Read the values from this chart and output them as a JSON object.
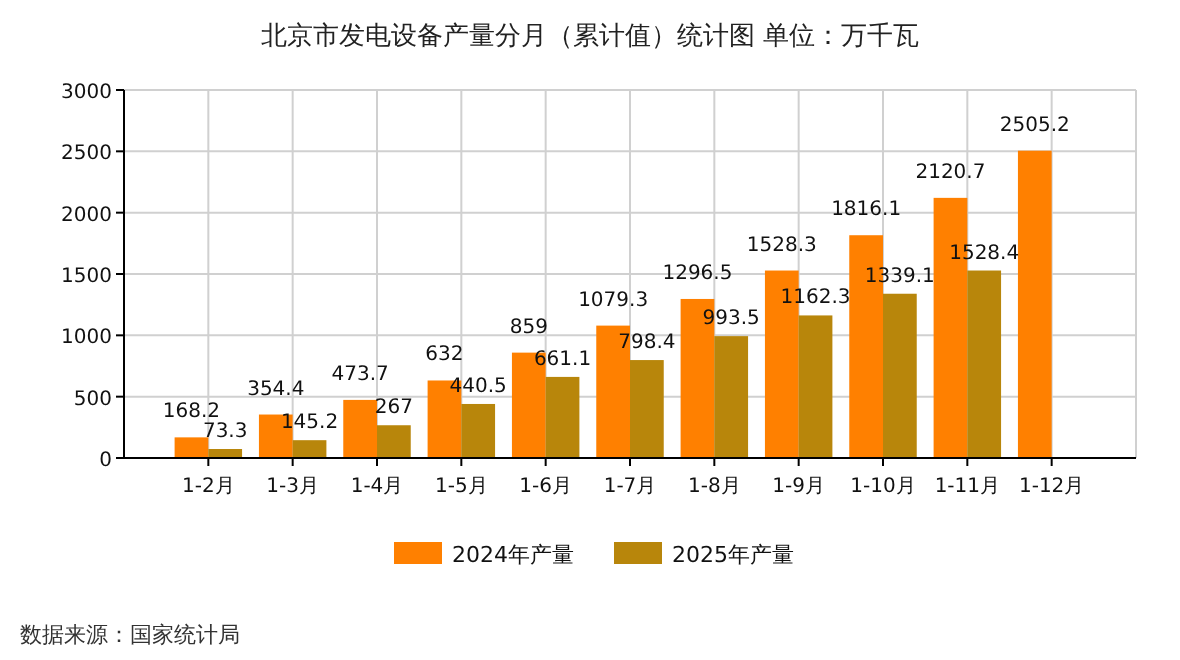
{
  "chart_data": {
    "type": "bar",
    "title": "北京市发电设备产量分月（累计值）统计图 单位：万千瓦",
    "categories": [
      "1-2月",
      "1-3月",
      "1-4月",
      "1-5月",
      "1-6月",
      "1-7月",
      "1-8月",
      "1-9月",
      "1-10月",
      "1-11月",
      "1-12月"
    ],
    "series": [
      {
        "name": "2024年产量",
        "color": "#ff8000",
        "values": [
          168.2,
          354.4,
          473.7,
          632,
          859,
          1079.3,
          1296.5,
          1528.3,
          1816.1,
          2120.7,
          2505.2
        ]
      },
      {
        "name": "2025年产量",
        "color": "#b8860b",
        "values": [
          73.3,
          145.2,
          267,
          440.5,
          661.1,
          798.4,
          993.5,
          1162.3,
          1339.1,
          1528.4,
          null
        ]
      }
    ],
    "ylim": [
      0,
      3000
    ],
    "yticks": [
      0,
      500,
      1000,
      1500,
      2000,
      2500,
      3000
    ],
    "grid": true,
    "legend": "bottom",
    "data_labels": true,
    "annotations": [
      "数据来源：国家统计局"
    ]
  }
}
